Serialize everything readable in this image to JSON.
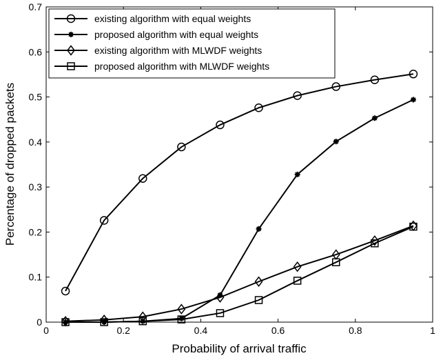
{
  "chart_data": {
    "type": "line",
    "xlabel": "Probability of arrival traffic",
    "ylabel": "Percentage of dropped packets",
    "xlim": [
      0,
      1
    ],
    "ylim": [
      0,
      0.7
    ],
    "x_ticks": [
      0,
      0.2,
      0.4,
      0.6,
      0.8,
      1
    ],
    "x_tick_labels": [
      "0",
      "0.2",
      "0.4",
      "0.6",
      "0.8",
      "1"
    ],
    "y_ticks": [
      0,
      0.1,
      0.2,
      0.3,
      0.4,
      0.5,
      0.6,
      0.7
    ],
    "y_tick_labels": [
      "0",
      "0.1",
      "0.2",
      "0.3",
      "0.4",
      "0.5",
      "0.6",
      "0.7"
    ],
    "grid": false,
    "legend_position": "top-left",
    "x": [
      0.05,
      0.15,
      0.25,
      0.35,
      0.45,
      0.55,
      0.65,
      0.75,
      0.85,
      0.95
    ],
    "series": [
      {
        "name": "existing algorithm with equal weights",
        "marker": "circle",
        "color": "#000000",
        "values": [
          0.069,
          0.226,
          0.319,
          0.389,
          0.438,
          0.476,
          0.503,
          0.523,
          0.538,
          0.551
        ]
      },
      {
        "name": "proposed algorithm with equal weights",
        "marker": "asterisk",
        "color": "#000000",
        "values": [
          0.0,
          0.0,
          0.002,
          0.008,
          0.06,
          0.207,
          0.328,
          0.401,
          0.453,
          0.494
        ]
      },
      {
        "name": "existing algorithm with MLWDF weights",
        "marker": "diamond",
        "color": "#000000",
        "values": [
          0.002,
          0.005,
          0.012,
          0.029,
          0.055,
          0.09,
          0.123,
          0.15,
          0.181,
          0.214
        ]
      },
      {
        "name": "proposed algorithm with MLWDF weights",
        "marker": "square",
        "color": "#000000",
        "values": [
          0.0,
          0.0,
          0.002,
          0.006,
          0.02,
          0.049,
          0.092,
          0.133,
          0.175,
          0.212
        ]
      }
    ]
  }
}
